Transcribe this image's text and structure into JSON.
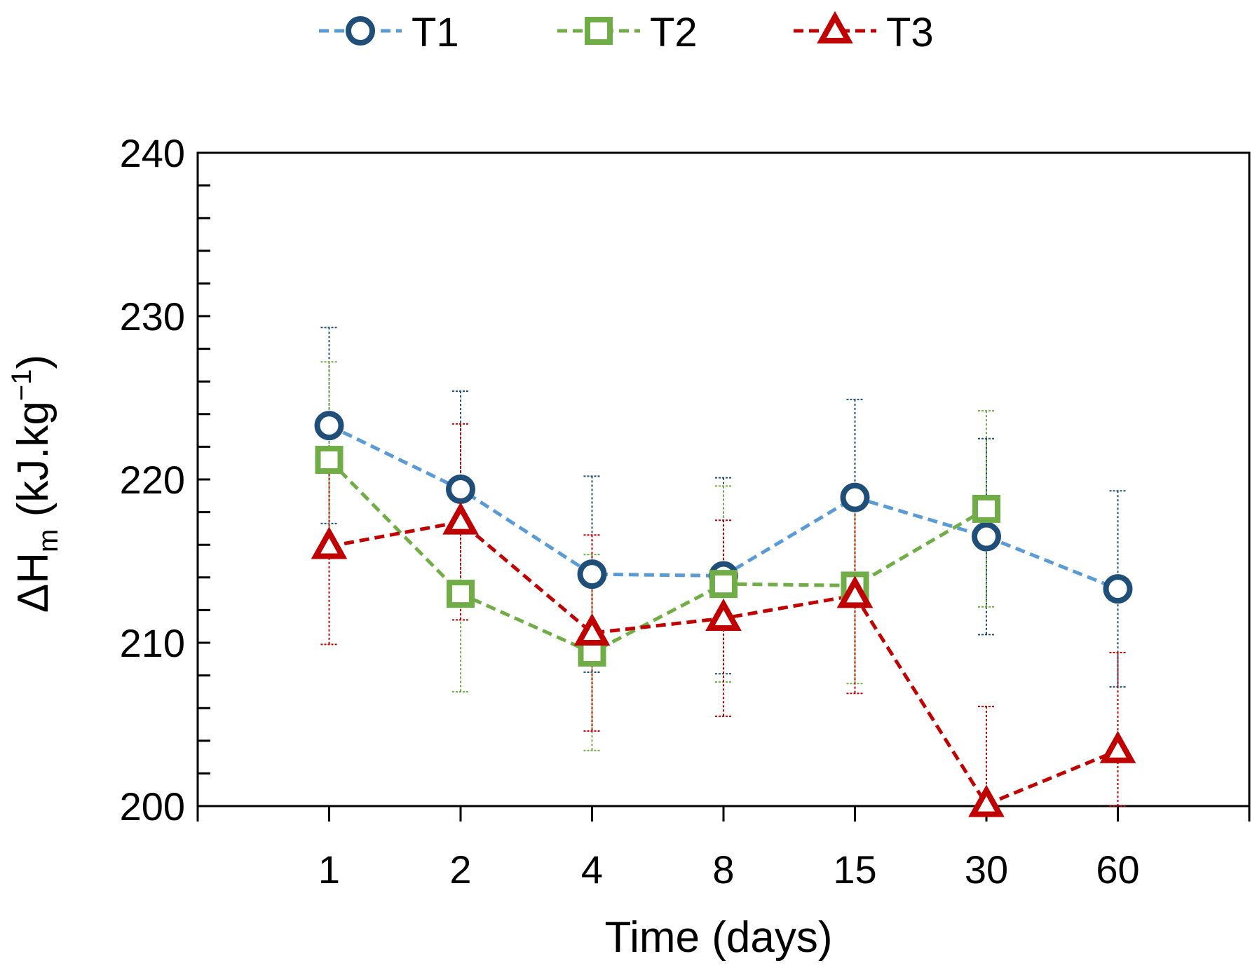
{
  "chart_data": {
    "type": "line",
    "categories": [
      "1",
      "2",
      "4",
      "8",
      "15",
      "30",
      "60"
    ],
    "xlabel": "Time (days)",
    "ylabel": {
      "base": "ΔH",
      "subscript": "m",
      "unit": " (kJ.kg",
      "superscript": "−1",
      "close": ")"
    },
    "ylim": [
      200,
      240
    ],
    "yticks": [
      "200",
      "210",
      "220",
      "230",
      "240"
    ],
    "legend_position": "top",
    "series": [
      {
        "name": "T1",
        "marker": "circle",
        "line_color": "#5b9bd5",
        "marker_color": "#1f4e79",
        "values": [
          223.3,
          219.4,
          214.2,
          214.1,
          218.9,
          216.5,
          213.3
        ],
        "errors": [
          6.0,
          6.0,
          6.0,
          6.0,
          6.0,
          6.0,
          6.0
        ]
      },
      {
        "name": "T2",
        "marker": "square",
        "line_color": "#70ad47",
        "marker_color": "#70ad47",
        "values": [
          221.2,
          213.0,
          209.4,
          213.6,
          213.5,
          218.2,
          null
        ],
        "errors": [
          6.0,
          6.0,
          6.0,
          6.0,
          6.0,
          6.0,
          null
        ]
      },
      {
        "name": "T3",
        "marker": "triangle",
        "line_color": "#c00000",
        "marker_color": "#c00000",
        "values": [
          215.9,
          217.4,
          210.6,
          211.5,
          212.9,
          200.1,
          203.4
        ],
        "errors": [
          6.0,
          6.0,
          6.0,
          6.0,
          6.0,
          6.0,
          6.0
        ]
      }
    ]
  }
}
